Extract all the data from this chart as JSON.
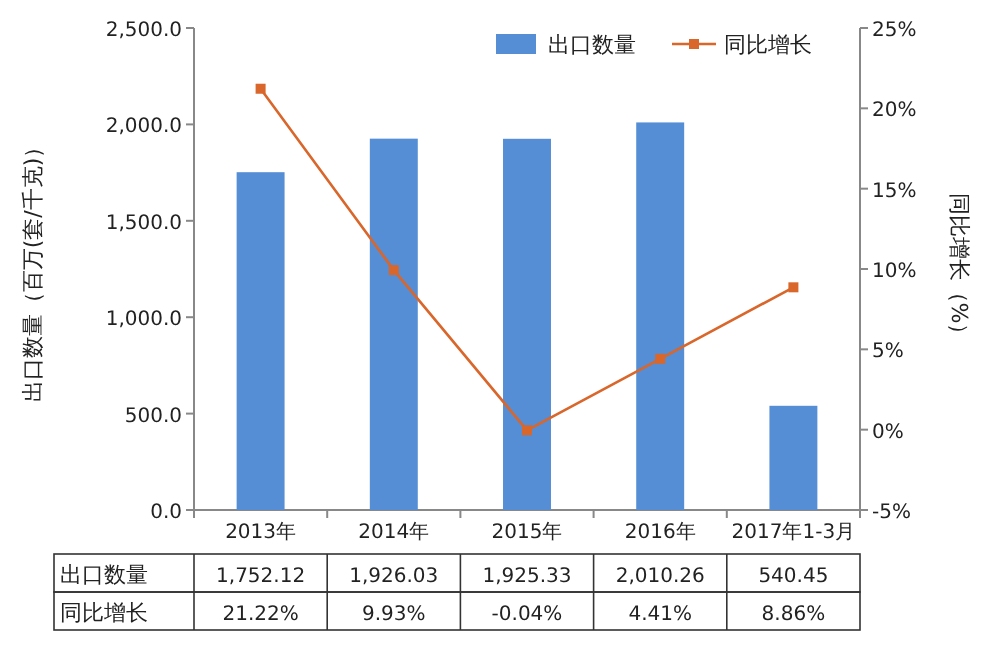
{
  "chart_data": {
    "type": "bar",
    "ylabel": "出口数量（百万(套/千克)）",
    "y2label": "同比增长（%）",
    "categories": [
      "2013年",
      "2014年",
      "2015年",
      "2016年",
      "2017年1-3月"
    ],
    "series": [
      {
        "name": "出口数量",
        "color": "#558ed5",
        "values": [
          1752.12,
          1926.03,
          1925.33,
          2010.26,
          540.45
        ],
        "value_labels": [
          "1,752.12",
          "1,926.03",
          "1,925.33",
          "2,010.26",
          "540.45"
        ]
      },
      {
        "name": "同比增长",
        "type": "line",
        "axis": "y2",
        "color": "#d9662a",
        "marker": "square",
        "values": [
          21.22,
          9.93,
          -0.04,
          4.41,
          8.86
        ],
        "value_labels": [
          "21.22%",
          "9.93%",
          "-0.04%",
          "4.41%",
          "8.86%"
        ]
      }
    ],
    "ylim": [
      0,
      2500
    ],
    "yticks": [
      {
        "value": 0,
        "label": "0.0"
      },
      {
        "value": 500,
        "label": "500.0"
      },
      {
        "value": 1000,
        "label": "1,000.0"
      },
      {
        "value": 1500,
        "label": "1,500.0"
      },
      {
        "value": 2000,
        "label": "2,000.0"
      },
      {
        "value": 2500,
        "label": "2,500.0"
      }
    ],
    "y2lim": [
      -5,
      25
    ],
    "y2ticks": [
      {
        "value": -5,
        "label": "-5%"
      },
      {
        "value": 0,
        "label": "0%"
      },
      {
        "value": 5,
        "label": "5%"
      },
      {
        "value": 10,
        "label": "10%"
      },
      {
        "value": 15,
        "label": "15%"
      },
      {
        "value": 20,
        "label": "20%"
      },
      {
        "value": 25,
        "label": "25%"
      }
    ],
    "grid": false,
    "legend": "top right"
  }
}
